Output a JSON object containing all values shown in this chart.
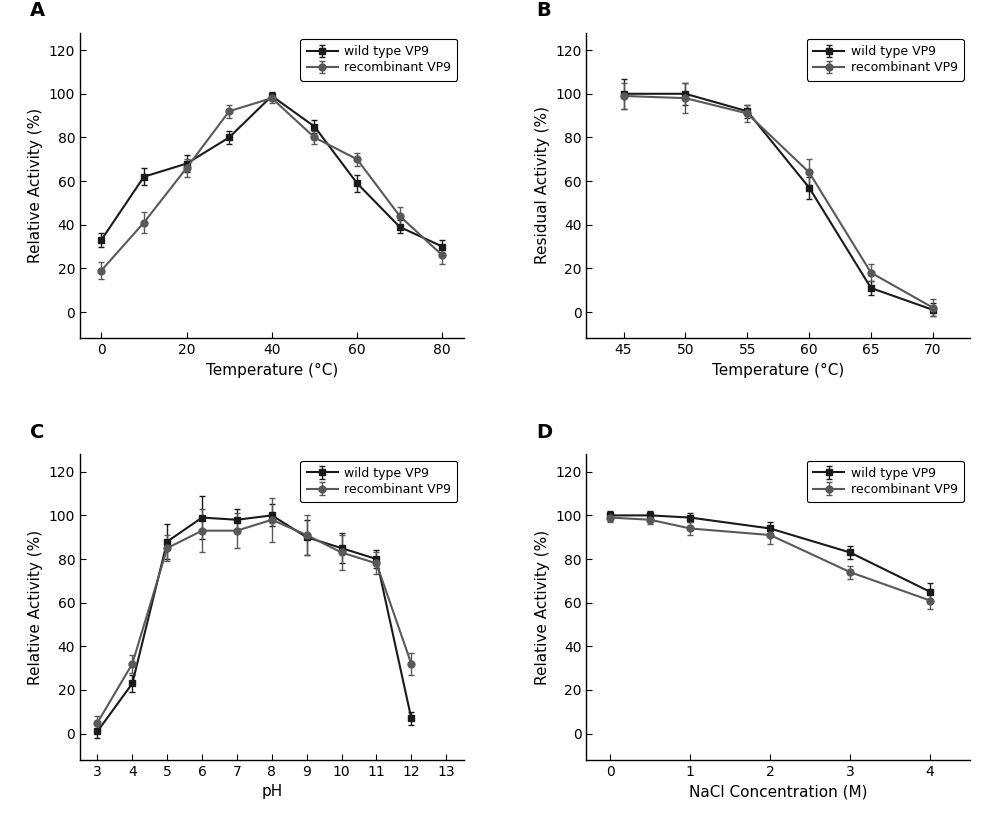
{
  "A": {
    "title": "A",
    "xlabel": "Temperature (°C)",
    "ylabel": "Relative Activity (%)",
    "xlim": [
      -5,
      85
    ],
    "ylim": [
      -12,
      128
    ],
    "xticks": [
      0,
      20,
      40,
      60,
      80
    ],
    "yticks": [
      0,
      20,
      40,
      60,
      80,
      100,
      120
    ],
    "wt_x": [
      0,
      10,
      20,
      30,
      40,
      50,
      60,
      70,
      80
    ],
    "wt_y": [
      33,
      62,
      68,
      80,
      99,
      85,
      59,
      39,
      30
    ],
    "wt_yerr": [
      3,
      4,
      4,
      3,
      2,
      3,
      4,
      3,
      3
    ],
    "rec_x": [
      0,
      10,
      20,
      30,
      40,
      50,
      60,
      70,
      80
    ],
    "rec_y": [
      19,
      41,
      66,
      92,
      98,
      80,
      70,
      44,
      26
    ],
    "rec_yerr": [
      4,
      5,
      4,
      3,
      2,
      3,
      3,
      4,
      4
    ]
  },
  "B": {
    "title": "B",
    "xlabel": "Temperature (°C)",
    "ylabel": "Residual Activity (%)",
    "xlim": [
      42,
      73
    ],
    "ylim": [
      -12,
      128
    ],
    "xticks": [
      45,
      50,
      55,
      60,
      65,
      70
    ],
    "yticks": [
      0,
      20,
      40,
      60,
      80,
      100,
      120
    ],
    "wt_x": [
      45,
      50,
      55,
      60,
      65,
      70
    ],
    "wt_y": [
      100,
      100,
      92,
      57,
      11,
      1
    ],
    "wt_yerr": [
      7,
      5,
      3,
      5,
      3,
      3
    ],
    "rec_x": [
      45,
      50,
      55,
      60,
      65,
      70
    ],
    "rec_y": [
      99,
      98,
      91,
      64,
      18,
      2
    ],
    "rec_yerr": [
      6,
      7,
      4,
      6,
      4,
      4
    ]
  },
  "C": {
    "title": "C",
    "xlabel": "pH",
    "ylabel": "Relative Activity (%)",
    "xlim": [
      2.5,
      13.5
    ],
    "ylim": [
      -12,
      128
    ],
    "xticks": [
      3,
      4,
      5,
      6,
      7,
      8,
      9,
      10,
      11,
      12,
      13
    ],
    "yticks": [
      0,
      20,
      40,
      60,
      80,
      100,
      120
    ],
    "wt_x": [
      3,
      4,
      5,
      6,
      7,
      8,
      9,
      10,
      11,
      12
    ],
    "wt_y": [
      1,
      23,
      88,
      99,
      98,
      100,
      90,
      85,
      80,
      7
    ],
    "wt_yerr": [
      3,
      4,
      8,
      10,
      5,
      5,
      8,
      7,
      4,
      3
    ],
    "rec_x": [
      3,
      4,
      5,
      6,
      7,
      8,
      9,
      10,
      11,
      12
    ],
    "rec_y": [
      5,
      32,
      85,
      93,
      93,
      98,
      91,
      83,
      78,
      32
    ],
    "rec_yerr": [
      3,
      4,
      6,
      10,
      8,
      10,
      9,
      8,
      5,
      5
    ]
  },
  "D": {
    "title": "D",
    "xlabel": "NaCl Concentration (M)",
    "ylabel": "Relative Activity (%)",
    "xlim": [
      -0.3,
      4.5
    ],
    "ylim": [
      -12,
      128
    ],
    "xticks": [
      0,
      1,
      2,
      3,
      4
    ],
    "yticks": [
      0,
      20,
      40,
      60,
      80,
      100,
      120
    ],
    "wt_x": [
      0,
      0.5,
      1,
      2,
      3,
      4
    ],
    "wt_y": [
      100,
      100,
      99,
      94,
      83,
      65
    ],
    "wt_yerr": [
      2,
      2,
      2,
      3,
      3,
      4
    ],
    "rec_x": [
      0,
      0.5,
      1,
      2,
      3,
      4
    ],
    "rec_y": [
      99,
      98,
      94,
      91,
      74,
      61
    ],
    "rec_yerr": [
      2,
      2,
      3,
      4,
      3,
      4
    ]
  },
  "wt_color": "#1a1a1a",
  "rec_color": "#595959",
  "line_width": 1.5,
  "marker_size": 5,
  "legend_fontsize": 9,
  "axis_fontsize": 11,
  "tick_fontsize": 10,
  "label_fontsize": 14
}
